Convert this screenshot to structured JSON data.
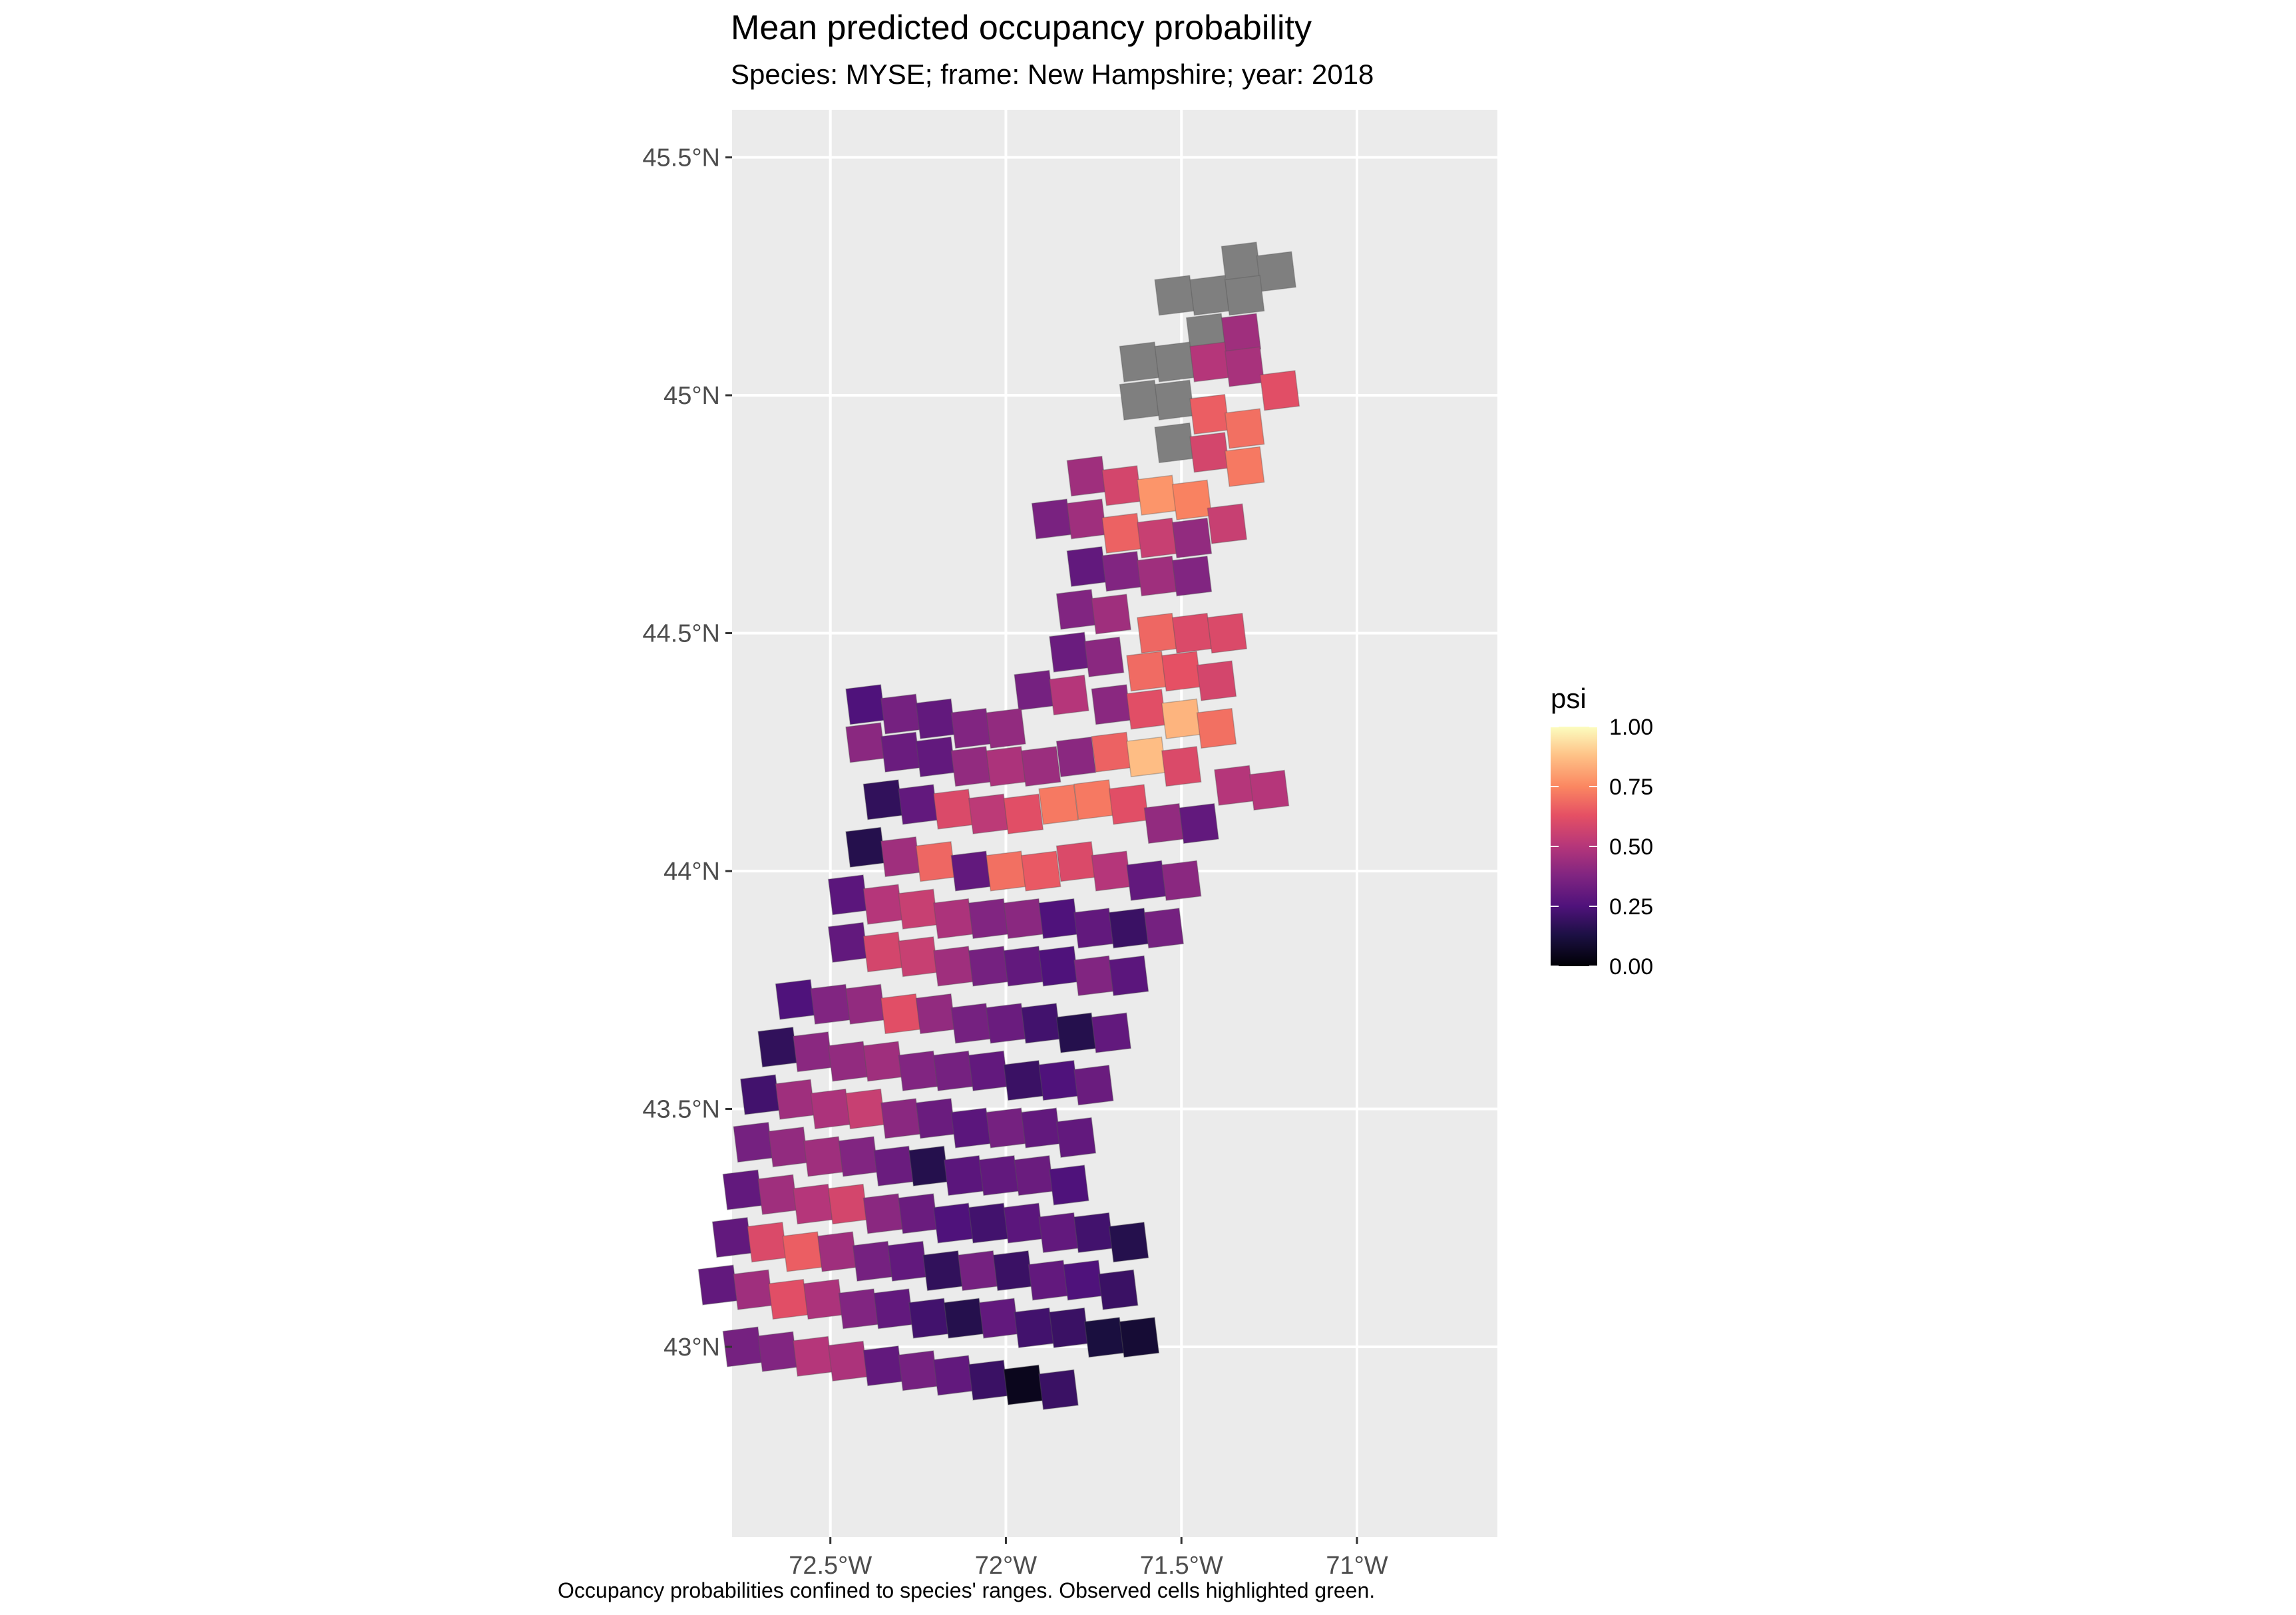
{
  "chart_data": {
    "type": "heatmap",
    "title": "Mean predicted occupancy probability",
    "subtitle": "Species: MYSE; frame: New Hampshire; year: 2018",
    "caption": "Occupancy probabilities confined to species' ranges. Observed cells highlighted green.",
    "xlim": [
      -72.78,
      -70.6
    ],
    "ylim": [
      42.6,
      45.6
    ],
    "x_ticks": [
      {
        "value": -72.5,
        "label": "72.5°W"
      },
      {
        "value": -72.0,
        "label": "72°W"
      },
      {
        "value": -71.5,
        "label": "71.5°W"
      },
      {
        "value": -71.0,
        "label": "71°W"
      }
    ],
    "y_ticks": [
      {
        "value": 43.0,
        "label": "43°N"
      },
      {
        "value": 43.5,
        "label": "43.5°N"
      },
      {
        "value": 44.0,
        "label": "44°N"
      },
      {
        "value": 44.5,
        "label": "44.5°N"
      },
      {
        "value": 45.0,
        "label": "45°N"
      },
      {
        "value": 45.5,
        "label": "45.5°N"
      }
    ],
    "grid": true,
    "legend": {
      "title": "psi",
      "position": "right",
      "colormap": "magma",
      "range": [
        0,
        1
      ],
      "labels": [
        "1.00",
        "0.75",
        "0.50",
        "0.25",
        "0.00"
      ],
      "label_values": [
        1.0,
        0.75,
        0.5,
        0.25,
        0.0
      ],
      "na_color": "#7f7f7f"
    },
    "cells": [
      {
        "lon": -71.33,
        "lat": 45.28,
        "psi": null
      },
      {
        "lon": -71.23,
        "lat": 45.26,
        "psi": null
      },
      {
        "lon": -71.52,
        "lat": 45.21,
        "psi": null
      },
      {
        "lon": -71.42,
        "lat": 45.21,
        "psi": null
      },
      {
        "lon": -71.32,
        "lat": 45.21,
        "psi": null
      },
      {
        "lon": -71.43,
        "lat": 45.13,
        "psi": null
      },
      {
        "lon": -71.33,
        "lat": 45.13,
        "psi": 0.45
      },
      {
        "lon": -71.62,
        "lat": 45.07,
        "psi": null
      },
      {
        "lon": -71.52,
        "lat": 45.07,
        "psi": null
      },
      {
        "lon": -71.42,
        "lat": 45.07,
        "psi": 0.5
      },
      {
        "lon": -71.32,
        "lat": 45.06,
        "psi": 0.47
      },
      {
        "lon": -71.22,
        "lat": 45.01,
        "psi": 0.62
      },
      {
        "lon": -71.62,
        "lat": 44.99,
        "psi": null
      },
      {
        "lon": -71.52,
        "lat": 44.99,
        "psi": null
      },
      {
        "lon": -71.42,
        "lat": 44.96,
        "psi": 0.66
      },
      {
        "lon": -71.32,
        "lat": 44.93,
        "psi": 0.7
      },
      {
        "lon": -71.52,
        "lat": 44.9,
        "psi": null
      },
      {
        "lon": -71.42,
        "lat": 44.88,
        "psi": 0.58
      },
      {
        "lon": -71.32,
        "lat": 44.85,
        "psi": 0.72
      },
      {
        "lon": -71.77,
        "lat": 44.83,
        "psi": 0.45
      },
      {
        "lon": -71.67,
        "lat": 44.81,
        "psi": 0.58
      },
      {
        "lon": -71.57,
        "lat": 44.79,
        "psi": 0.78
      },
      {
        "lon": -71.47,
        "lat": 44.78,
        "psi": 0.74
      },
      {
        "lon": -71.87,
        "lat": 44.74,
        "psi": 0.36
      },
      {
        "lon": -71.77,
        "lat": 44.74,
        "psi": 0.45
      },
      {
        "lon": -71.67,
        "lat": 44.71,
        "psi": 0.67
      },
      {
        "lon": -71.57,
        "lat": 44.7,
        "psi": 0.55
      },
      {
        "lon": -71.47,
        "lat": 44.7,
        "psi": 0.42
      },
      {
        "lon": -71.37,
        "lat": 44.73,
        "psi": 0.55
      },
      {
        "lon": -71.77,
        "lat": 44.64,
        "psi": 0.3
      },
      {
        "lon": -71.67,
        "lat": 44.63,
        "psi": 0.38
      },
      {
        "lon": -71.57,
        "lat": 44.62,
        "psi": 0.45
      },
      {
        "lon": -71.47,
        "lat": 44.62,
        "psi": 0.38
      },
      {
        "lon": -71.8,
        "lat": 44.55,
        "psi": 0.38
      },
      {
        "lon": -71.7,
        "lat": 44.54,
        "psi": 0.45
      },
      {
        "lon": -71.57,
        "lat": 44.5,
        "psi": 0.68
      },
      {
        "lon": -71.47,
        "lat": 44.5,
        "psi": 0.6
      },
      {
        "lon": -71.37,
        "lat": 44.5,
        "psi": 0.6
      },
      {
        "lon": -71.82,
        "lat": 44.46,
        "psi": 0.32
      },
      {
        "lon": -71.72,
        "lat": 44.45,
        "psi": 0.4
      },
      {
        "lon": -71.6,
        "lat": 44.42,
        "psi": 0.69
      },
      {
        "lon": -71.5,
        "lat": 44.42,
        "psi": 0.63
      },
      {
        "lon": -71.4,
        "lat": 44.4,
        "psi": 0.58
      },
      {
        "lon": -71.92,
        "lat": 44.38,
        "psi": 0.35
      },
      {
        "lon": -71.82,
        "lat": 44.37,
        "psi": 0.5
      },
      {
        "lon": -71.7,
        "lat": 44.35,
        "psi": 0.4
      },
      {
        "lon": -71.6,
        "lat": 44.34,
        "psi": 0.62
      },
      {
        "lon": -71.5,
        "lat": 44.32,
        "psi": 0.85
      },
      {
        "lon": -71.4,
        "lat": 44.3,
        "psi": 0.7
      },
      {
        "lon": -72.4,
        "lat": 44.35,
        "psi": 0.25
      },
      {
        "lon": -72.3,
        "lat": 44.33,
        "psi": 0.35
      },
      {
        "lon": -72.2,
        "lat": 44.32,
        "psi": 0.3
      },
      {
        "lon": -72.1,
        "lat": 44.3,
        "psi": 0.38
      },
      {
        "lon": -72.0,
        "lat": 44.3,
        "psi": 0.42
      },
      {
        "lon": -72.4,
        "lat": 44.27,
        "psi": 0.4
      },
      {
        "lon": -72.3,
        "lat": 44.25,
        "psi": 0.32
      },
      {
        "lon": -72.2,
        "lat": 44.24,
        "psi": 0.3
      },
      {
        "lon": -72.1,
        "lat": 44.22,
        "psi": 0.42
      },
      {
        "lon": -72.0,
        "lat": 44.22,
        "psi": 0.48
      },
      {
        "lon": -71.9,
        "lat": 44.22,
        "psi": 0.44
      },
      {
        "lon": -71.8,
        "lat": 44.24,
        "psi": 0.4
      },
      {
        "lon": -71.7,
        "lat": 44.25,
        "psi": 0.67
      },
      {
        "lon": -71.6,
        "lat": 44.24,
        "psi": 0.87
      },
      {
        "lon": -71.5,
        "lat": 44.22,
        "psi": 0.6
      },
      {
        "lon": -71.35,
        "lat": 44.18,
        "psi": 0.5
      },
      {
        "lon": -71.25,
        "lat": 44.17,
        "psi": 0.5
      },
      {
        "lon": -72.35,
        "lat": 44.15,
        "psi": 0.18
      },
      {
        "lon": -72.25,
        "lat": 44.14,
        "psi": 0.3
      },
      {
        "lon": -72.15,
        "lat": 44.13,
        "psi": 0.6
      },
      {
        "lon": -72.05,
        "lat": 44.12,
        "psi": 0.52
      },
      {
        "lon": -71.95,
        "lat": 44.12,
        "psi": 0.62
      },
      {
        "lon": -71.85,
        "lat": 44.14,
        "psi": 0.72
      },
      {
        "lon": -71.75,
        "lat": 44.15,
        "psi": 0.72
      },
      {
        "lon": -71.65,
        "lat": 44.14,
        "psi": 0.62
      },
      {
        "lon": -71.55,
        "lat": 44.1,
        "psi": 0.42
      },
      {
        "lon": -71.45,
        "lat": 44.1,
        "psi": 0.3
      },
      {
        "lon": -72.4,
        "lat": 44.05,
        "psi": 0.15
      },
      {
        "lon": -72.3,
        "lat": 44.03,
        "psi": 0.45
      },
      {
        "lon": -72.2,
        "lat": 44.02,
        "psi": 0.68
      },
      {
        "lon": -72.1,
        "lat": 44.0,
        "psi": 0.3
      },
      {
        "lon": -72.0,
        "lat": 44.0,
        "psi": 0.7
      },
      {
        "lon": -71.9,
        "lat": 44.0,
        "psi": 0.65
      },
      {
        "lon": -71.8,
        "lat": 44.02,
        "psi": 0.6
      },
      {
        "lon": -71.7,
        "lat": 44.0,
        "psi": 0.5
      },
      {
        "lon": -71.6,
        "lat": 43.98,
        "psi": 0.3
      },
      {
        "lon": -71.5,
        "lat": 43.98,
        "psi": 0.4
      },
      {
        "lon": -72.45,
        "lat": 43.95,
        "psi": 0.28
      },
      {
        "lon": -72.35,
        "lat": 43.93,
        "psi": 0.5
      },
      {
        "lon": -72.25,
        "lat": 43.92,
        "psi": 0.55
      },
      {
        "lon": -72.15,
        "lat": 43.9,
        "psi": 0.48
      },
      {
        "lon": -72.05,
        "lat": 43.9,
        "psi": 0.38
      },
      {
        "lon": -71.95,
        "lat": 43.9,
        "psi": 0.4
      },
      {
        "lon": -71.85,
        "lat": 43.9,
        "psi": 0.25
      },
      {
        "lon": -71.75,
        "lat": 43.88,
        "psi": 0.3
      },
      {
        "lon": -71.65,
        "lat": 43.88,
        "psi": 0.2
      },
      {
        "lon": -71.55,
        "lat": 43.88,
        "psi": 0.35
      },
      {
        "lon": -72.45,
        "lat": 43.85,
        "psi": 0.3
      },
      {
        "lon": -72.35,
        "lat": 43.83,
        "psi": 0.58
      },
      {
        "lon": -72.25,
        "lat": 43.82,
        "psi": 0.55
      },
      {
        "lon": -72.15,
        "lat": 43.8,
        "psi": 0.45
      },
      {
        "lon": -72.05,
        "lat": 43.8,
        "psi": 0.35
      },
      {
        "lon": -71.95,
        "lat": 43.8,
        "psi": 0.3
      },
      {
        "lon": -71.85,
        "lat": 43.8,
        "psi": 0.25
      },
      {
        "lon": -71.75,
        "lat": 43.78,
        "psi": 0.38
      },
      {
        "lon": -71.65,
        "lat": 43.78,
        "psi": 0.28
      },
      {
        "lon": -72.6,
        "lat": 43.73,
        "psi": 0.25
      },
      {
        "lon": -72.5,
        "lat": 43.72,
        "psi": 0.38
      },
      {
        "lon": -72.4,
        "lat": 43.72,
        "psi": 0.42
      },
      {
        "lon": -72.3,
        "lat": 43.7,
        "psi": 0.62
      },
      {
        "lon": -72.2,
        "lat": 43.7,
        "psi": 0.42
      },
      {
        "lon": -72.1,
        "lat": 43.68,
        "psi": 0.35
      },
      {
        "lon": -72.0,
        "lat": 43.68,
        "psi": 0.32
      },
      {
        "lon": -71.9,
        "lat": 43.68,
        "psi": 0.22
      },
      {
        "lon": -71.8,
        "lat": 43.66,
        "psi": 0.15
      },
      {
        "lon": -71.7,
        "lat": 43.66,
        "psi": 0.3
      },
      {
        "lon": -72.65,
        "lat": 43.63,
        "psi": 0.18
      },
      {
        "lon": -72.55,
        "lat": 43.62,
        "psi": 0.4
      },
      {
        "lon": -72.45,
        "lat": 43.6,
        "psi": 0.42
      },
      {
        "lon": -72.35,
        "lat": 43.6,
        "psi": 0.45
      },
      {
        "lon": -72.25,
        "lat": 43.58,
        "psi": 0.38
      },
      {
        "lon": -72.15,
        "lat": 43.58,
        "psi": 0.35
      },
      {
        "lon": -72.05,
        "lat": 43.58,
        "psi": 0.3
      },
      {
        "lon": -71.95,
        "lat": 43.56,
        "psi": 0.2
      },
      {
        "lon": -71.85,
        "lat": 43.56,
        "psi": 0.25
      },
      {
        "lon": -71.75,
        "lat": 43.55,
        "psi": 0.32
      },
      {
        "lon": -72.7,
        "lat": 43.53,
        "psi": 0.22
      },
      {
        "lon": -72.6,
        "lat": 43.52,
        "psi": 0.45
      },
      {
        "lon": -72.5,
        "lat": 43.5,
        "psi": 0.48
      },
      {
        "lon": -72.4,
        "lat": 43.5,
        "psi": 0.55
      },
      {
        "lon": -72.3,
        "lat": 43.48,
        "psi": 0.4
      },
      {
        "lon": -72.2,
        "lat": 43.48,
        "psi": 0.32
      },
      {
        "lon": -72.1,
        "lat": 43.46,
        "psi": 0.28
      },
      {
        "lon": -72.0,
        "lat": 43.46,
        "psi": 0.35
      },
      {
        "lon": -71.9,
        "lat": 43.46,
        "psi": 0.3
      },
      {
        "lon": -71.8,
        "lat": 43.44,
        "psi": 0.3
      },
      {
        "lon": -72.72,
        "lat": 43.43,
        "psi": 0.35
      },
      {
        "lon": -72.62,
        "lat": 43.42,
        "psi": 0.42
      },
      {
        "lon": -72.52,
        "lat": 43.4,
        "psi": 0.45
      },
      {
        "lon": -72.42,
        "lat": 43.4,
        "psi": 0.38
      },
      {
        "lon": -72.32,
        "lat": 43.38,
        "psi": 0.32
      },
      {
        "lon": -72.22,
        "lat": 43.38,
        "psi": 0.15
      },
      {
        "lon": -72.12,
        "lat": 43.36,
        "psi": 0.28
      },
      {
        "lon": -72.02,
        "lat": 43.36,
        "psi": 0.3
      },
      {
        "lon": -71.92,
        "lat": 43.36,
        "psi": 0.32
      },
      {
        "lon": -71.82,
        "lat": 43.34,
        "psi": 0.25
      },
      {
        "lon": -72.75,
        "lat": 43.33,
        "psi": 0.3
      },
      {
        "lon": -72.65,
        "lat": 43.32,
        "psi": 0.45
      },
      {
        "lon": -72.55,
        "lat": 43.3,
        "psi": 0.5
      },
      {
        "lon": -72.45,
        "lat": 43.3,
        "psi": 0.58
      },
      {
        "lon": -72.35,
        "lat": 43.28,
        "psi": 0.4
      },
      {
        "lon": -72.25,
        "lat": 43.28,
        "psi": 0.32
      },
      {
        "lon": -72.15,
        "lat": 43.26,
        "psi": 0.25
      },
      {
        "lon": -72.05,
        "lat": 43.26,
        "psi": 0.22
      },
      {
        "lon": -71.95,
        "lat": 43.26,
        "psi": 0.28
      },
      {
        "lon": -71.85,
        "lat": 43.24,
        "psi": 0.3
      },
      {
        "lon": -71.75,
        "lat": 43.24,
        "psi": 0.22
      },
      {
        "lon": -71.65,
        "lat": 43.22,
        "psi": 0.15
      },
      {
        "lon": -72.78,
        "lat": 43.23,
        "psi": 0.3
      },
      {
        "lon": -72.68,
        "lat": 43.22,
        "psi": 0.6
      },
      {
        "lon": -72.58,
        "lat": 43.2,
        "psi": 0.66
      },
      {
        "lon": -72.48,
        "lat": 43.2,
        "psi": 0.45
      },
      {
        "lon": -72.38,
        "lat": 43.18,
        "psi": 0.35
      },
      {
        "lon": -72.28,
        "lat": 43.18,
        "psi": 0.3
      },
      {
        "lon": -72.18,
        "lat": 43.16,
        "psi": 0.18
      },
      {
        "lon": -72.08,
        "lat": 43.16,
        "psi": 0.35
      },
      {
        "lon": -71.98,
        "lat": 43.16,
        "psi": 0.2
      },
      {
        "lon": -71.88,
        "lat": 43.14,
        "psi": 0.3
      },
      {
        "lon": -71.78,
        "lat": 43.14,
        "psi": 0.25
      },
      {
        "lon": -71.68,
        "lat": 43.12,
        "psi": 0.2
      },
      {
        "lon": -72.82,
        "lat": 43.13,
        "psi": 0.3
      },
      {
        "lon": -72.72,
        "lat": 43.12,
        "psi": 0.45
      },
      {
        "lon": -72.62,
        "lat": 43.1,
        "psi": 0.62
      },
      {
        "lon": -72.52,
        "lat": 43.1,
        "psi": 0.48
      },
      {
        "lon": -72.42,
        "lat": 43.08,
        "psi": 0.38
      },
      {
        "lon": -72.32,
        "lat": 43.08,
        "psi": 0.3
      },
      {
        "lon": -72.22,
        "lat": 43.06,
        "psi": 0.22
      },
      {
        "lon": -72.12,
        "lat": 43.06,
        "psi": 0.15
      },
      {
        "lon": -72.02,
        "lat": 43.06,
        "psi": 0.3
      },
      {
        "lon": -71.92,
        "lat": 43.04,
        "psi": 0.22
      },
      {
        "lon": -71.82,
        "lat": 43.04,
        "psi": 0.2
      },
      {
        "lon": -71.72,
        "lat": 43.02,
        "psi": 0.12
      },
      {
        "lon": -71.62,
        "lat": 43.02,
        "psi": 0.1
      },
      {
        "lon": -72.75,
        "lat": 43.0,
        "psi": 0.35
      },
      {
        "lon": -72.65,
        "lat": 42.99,
        "psi": 0.38
      },
      {
        "lon": -72.55,
        "lat": 42.98,
        "psi": 0.5
      },
      {
        "lon": -72.45,
        "lat": 42.97,
        "psi": 0.48
      },
      {
        "lon": -72.35,
        "lat": 42.96,
        "psi": 0.3
      },
      {
        "lon": -72.25,
        "lat": 42.95,
        "psi": 0.35
      },
      {
        "lon": -72.15,
        "lat": 42.94,
        "psi": 0.3
      },
      {
        "lon": -72.05,
        "lat": 42.93,
        "psi": 0.2
      },
      {
        "lon": -71.95,
        "lat": 42.92,
        "psi": 0.05
      },
      {
        "lon": -71.85,
        "lat": 42.91,
        "psi": 0.2
      }
    ]
  }
}
